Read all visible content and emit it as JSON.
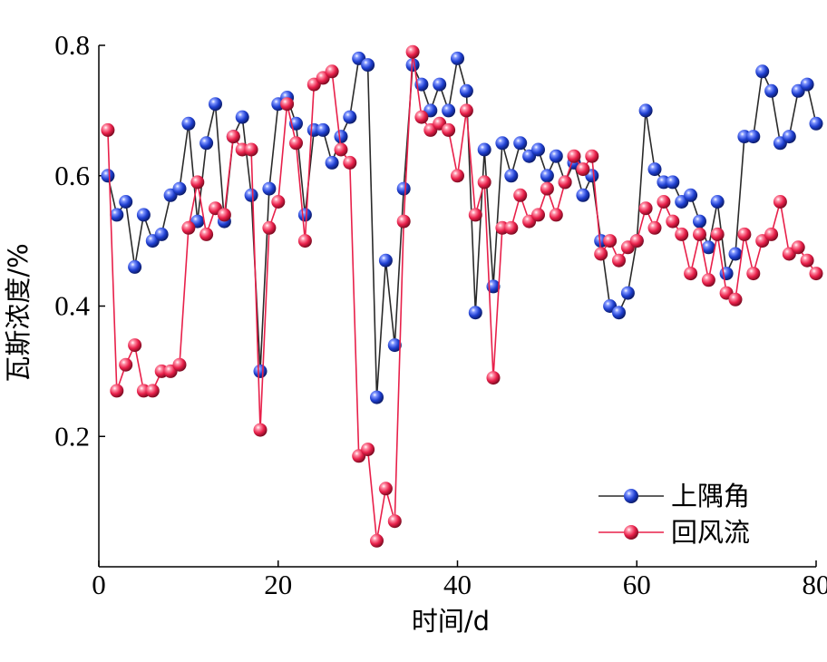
{
  "chart_data": {
    "type": "line",
    "title": "",
    "xlabel": "时间/d",
    "ylabel": "瓦斯浓度/%",
    "xlim": [
      0,
      80
    ],
    "ylim": [
      0,
      0.8
    ],
    "x_ticks": [
      "0",
      "20",
      "40",
      "60",
      "80"
    ],
    "y_ticks": [
      "0.2",
      "0.4",
      "0.6",
      "0.8"
    ],
    "grid": false,
    "legend_position": "bottom-right",
    "series": [
      {
        "name": "上隅角",
        "color": "#1f3fd0",
        "line_color": "#2a2a2a",
        "x": [
          1,
          2,
          3,
          4,
          5,
          6,
          7,
          8,
          9,
          10,
          11,
          12,
          13,
          14,
          15,
          16,
          17,
          18,
          19,
          20,
          21,
          22,
          23,
          24,
          25,
          26,
          27,
          28,
          29,
          30,
          31,
          32,
          33,
          34,
          35,
          36,
          37,
          38,
          39,
          40,
          41,
          42,
          43,
          44,
          45,
          46,
          47,
          48,
          49,
          50,
          51,
          52,
          53,
          54,
          55,
          56,
          57,
          58,
          59,
          60,
          61,
          62,
          63,
          64,
          65,
          66,
          67,
          68,
          69,
          70,
          71,
          72,
          73,
          74,
          75,
          76,
          77,
          78,
          79,
          80
        ],
        "values": [
          0.6,
          0.54,
          0.56,
          0.46,
          0.54,
          0.5,
          0.51,
          0.57,
          0.58,
          0.68,
          0.53,
          0.65,
          0.71,
          0.53,
          0.66,
          0.69,
          0.57,
          0.3,
          0.58,
          0.71,
          0.72,
          0.68,
          0.54,
          0.67,
          0.67,
          0.62,
          0.66,
          0.69,
          0.78,
          0.77,
          0.26,
          0.47,
          0.34,
          0.58,
          0.77,
          0.74,
          0.7,
          0.74,
          0.7,
          0.78,
          0.73,
          0.39,
          0.64,
          0.43,
          0.65,
          0.6,
          0.65,
          0.63,
          0.64,
          0.6,
          0.63,
          0.59,
          0.62,
          0.57,
          0.6,
          0.5,
          0.4,
          0.39,
          0.42,
          0.5,
          0.7,
          0.61,
          0.59,
          0.59,
          0.56,
          0.57,
          0.53,
          0.49,
          0.56,
          0.45,
          0.48,
          0.66,
          0.66,
          0.76,
          0.73,
          0.65,
          0.66,
          0.73,
          0.74,
          0.68
        ]
      },
      {
        "name": "回风流",
        "color": "#e8204a",
        "line_color": "#e8204a",
        "x": [
          1,
          2,
          3,
          4,
          5,
          6,
          7,
          8,
          9,
          10,
          11,
          12,
          13,
          14,
          15,
          16,
          17,
          18,
          19,
          20,
          21,
          22,
          23,
          24,
          25,
          26,
          27,
          28,
          29,
          30,
          31,
          32,
          33,
          34,
          35,
          36,
          37,
          38,
          39,
          40,
          41,
          42,
          43,
          44,
          45,
          46,
          47,
          48,
          49,
          50,
          51,
          52,
          53,
          54,
          55,
          56,
          57,
          58,
          59,
          60,
          61,
          62,
          63,
          64,
          65,
          66,
          67,
          68,
          69,
          70,
          71,
          72,
          73,
          74,
          75,
          76,
          77,
          78,
          79,
          80
        ],
        "values": [
          0.67,
          0.27,
          0.31,
          0.34,
          0.27,
          0.27,
          0.3,
          0.3,
          0.31,
          0.52,
          0.59,
          0.51,
          0.55,
          0.54,
          0.66,
          0.64,
          0.64,
          0.21,
          0.52,
          0.56,
          0.71,
          0.65,
          0.5,
          0.74,
          0.75,
          0.76,
          0.64,
          0.62,
          0.17,
          0.18,
          0.04,
          0.12,
          0.07,
          0.53,
          0.79,
          0.69,
          0.67,
          0.68,
          0.67,
          0.6,
          0.7,
          0.54,
          0.59,
          0.29,
          0.52,
          0.52,
          0.57,
          0.53,
          0.54,
          0.58,
          0.54,
          0.59,
          0.63,
          0.61,
          0.63,
          0.48,
          0.5,
          0.47,
          0.49,
          0.5,
          0.55,
          0.52,
          0.56,
          0.53,
          0.51,
          0.45,
          0.51,
          0.44,
          0.51,
          0.42,
          0.41,
          0.51,
          0.45,
          0.5,
          0.51,
          0.56,
          0.48,
          0.49,
          0.47,
          0.45
        ]
      }
    ]
  }
}
